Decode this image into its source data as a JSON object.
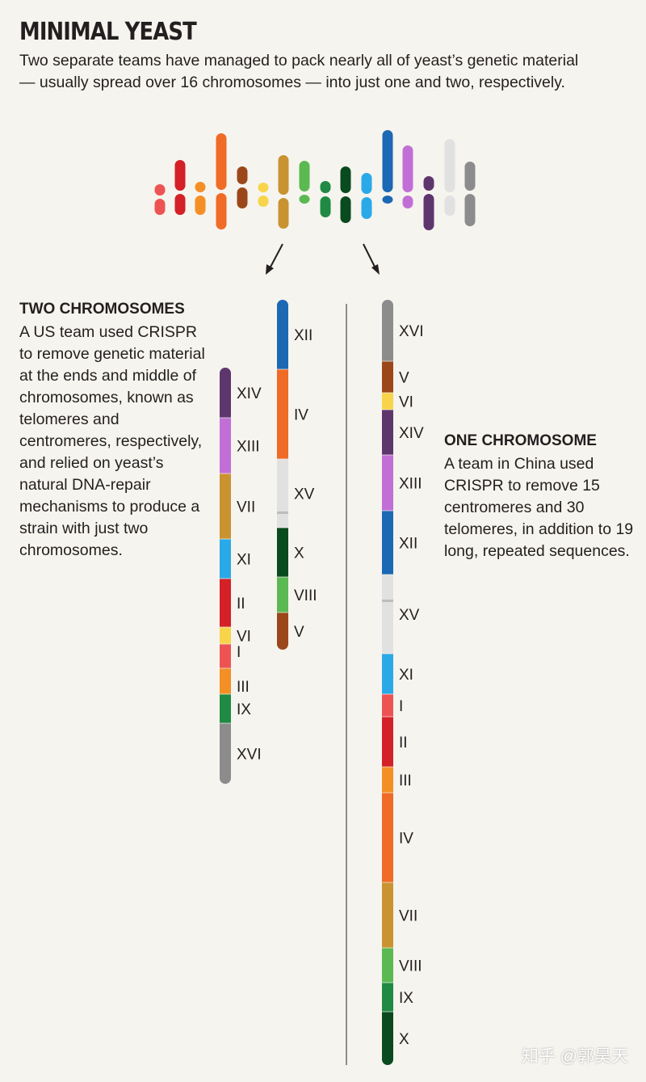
{
  "header": {
    "title": "MINIMAL YEAST",
    "subtitle": "Two separate teams have managed to pack nearly all of yeast’s genetic material — usually spread over 16 chromosomes — into just one and two, respectively."
  },
  "two_chromosomes": {
    "heading": "TWO CHROMOSOMES",
    "text": "A US team used CRISPR to remove genetic material at the ends and middle of chromosomes, known as telomeres and centromeres, respectively, and relied on yeast’s natural DNA-repair mechanisms to produce a strain with just two chromosomes."
  },
  "one_chromosome": {
    "heading": "ONE CHROMOSOME",
    "text": "A team in China used CRISPR to remove 15 centromeres and 30 telomeres, in addition to 19 long, repeated sequences."
  },
  "colors": {
    "I": "#ee5353",
    "II": "#d42027",
    "III": "#f48f26",
    "IV": "#ef6b26",
    "V": "#9b4719",
    "VI": "#f8d44a",
    "VII": "#c99332",
    "VIII": "#5bb952",
    "IX": "#1f8a43",
    "X": "#0a4a1f",
    "XI": "#2aa9e8",
    "XII": "#1b68b4",
    "XIII": "#c16fd6",
    "XIV": "#5e366e",
    "XV": "#e1e1e1",
    "XVI": "#8c8c8c"
  },
  "original_chromosomes": [
    "I",
    "II",
    "III",
    "IV",
    "V",
    "VI",
    "VII",
    "VIII",
    "IX",
    "X",
    "XI",
    "XII",
    "XIII",
    "XIV",
    "XV",
    "XVI"
  ],
  "two_chrom_left": [
    {
      "id": "XIV",
      "label": "XIV"
    },
    {
      "id": "XIII",
      "label": "XIII"
    },
    {
      "id": "VII",
      "label": "VII"
    },
    {
      "id": "XI",
      "label": "XI"
    },
    {
      "id": "II",
      "label": "II"
    },
    {
      "id": "VI",
      "label": "VI"
    },
    {
      "id": "I",
      "label": "I"
    },
    {
      "id": "III",
      "label": "III"
    },
    {
      "id": "IX",
      "label": "IX"
    },
    {
      "id": "XVI",
      "label": "XVI"
    }
  ],
  "two_chrom_right": [
    {
      "id": "XII",
      "label": "XII"
    },
    {
      "id": "IV",
      "label": "IV"
    },
    {
      "id": "XV",
      "label": "XV"
    },
    {
      "id": "X",
      "label": "X"
    },
    {
      "id": "VIII",
      "label": "VIII"
    },
    {
      "id": "V",
      "label": "V"
    }
  ],
  "one_chrom": [
    {
      "id": "XVI",
      "label": "XVI"
    },
    {
      "id": "V",
      "label": "V"
    },
    {
      "id": "VI",
      "label": "VI"
    },
    {
      "id": "XIV",
      "label": "XIV"
    },
    {
      "id": "XIII",
      "label": "XIII"
    },
    {
      "id": "XII",
      "label": "XII"
    },
    {
      "id": "XV",
      "label": "XV"
    },
    {
      "id": "XI",
      "label": "XI"
    },
    {
      "id": "I",
      "label": "I"
    },
    {
      "id": "II",
      "label": "II"
    },
    {
      "id": "III",
      "label": "III"
    },
    {
      "id": "IV",
      "label": "IV"
    },
    {
      "id": "VII",
      "label": "VII"
    },
    {
      "id": "VIII",
      "label": "VIII"
    },
    {
      "id": "IX",
      "label": "IX"
    },
    {
      "id": "X",
      "label": "X"
    }
  ],
  "watermark": "知乎 @郭昊天"
}
